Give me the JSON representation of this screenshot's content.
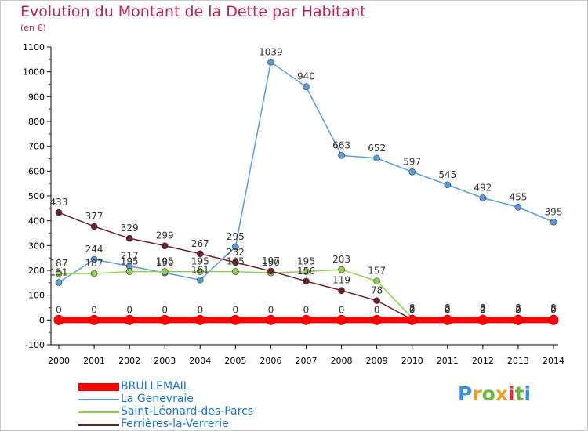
{
  "title": "Evolution du Montant de la Dette par Habitant",
  "subtitle": "(en €)",
  "logo_text": "Proxiti",
  "chart_data": {
    "type": "line",
    "x": [
      "2000",
      "2001",
      "2002",
      "2003",
      "2004",
      "2005",
      "2006",
      "2007",
      "2008",
      "2009",
      "2010",
      "2011",
      "2012",
      "2013",
      "2014"
    ],
    "ylim": [
      -100,
      1100
    ],
    "yticks": [
      "-100",
      "0",
      "100",
      "200",
      "300",
      "400",
      "500",
      "600",
      "700",
      "800",
      "900",
      "1000",
      "1100"
    ],
    "grid": false,
    "legend_position": "bottom",
    "series": [
      {
        "name": "BRULLEMAIL",
        "color": "#ff0000",
        "values": [
          0,
          0,
          0,
          0,
          0,
          0,
          0,
          0,
          0,
          0,
          0,
          0,
          0,
          0,
          0
        ],
        "labels": [
          "0",
          "0",
          "0",
          "0",
          "0",
          "0",
          "0",
          "0",
          "0",
          "0",
          "0",
          "0",
          "0",
          "0",
          "0"
        ]
      },
      {
        "name": "La Genevraie",
        "color": "#5b9bd5",
        "values": [
          151,
          244,
          217,
          190,
          161,
          295,
          1039,
          940,
          663,
          652,
          597,
          545,
          492,
          455,
          395
        ],
        "labels": [
          "151",
          "244",
          "217",
          "190",
          "161",
          "295",
          "1039",
          "940",
          "663",
          "652",
          "597",
          "545",
          "492",
          "455",
          "395"
        ]
      },
      {
        "name": "Saint-Léonard-des-Parcs",
        "color": "#8fd14f",
        "values": [
          187,
          187,
          195,
          195,
          195,
          195,
          190,
          195,
          203,
          157,
          8,
          8,
          8,
          8,
          8
        ],
        "labels": [
          "187",
          "187",
          "195",
          "195",
          "195",
          "195",
          "190",
          "195",
          "203",
          "157",
          "8",
          "8",
          "8",
          "8",
          "8"
        ]
      },
      {
        "name": "Ferrières-la-Verrerie",
        "color": "#6b1f2a",
        "values": [
          433,
          377,
          329,
          299,
          267,
          232,
          197,
          156,
          119,
          78,
          2,
          2,
          2,
          2,
          2
        ],
        "labels": [
          "433",
          "377",
          "329",
          "299",
          "267",
          "232",
          "197",
          "156",
          "119",
          "78",
          "2",
          "2",
          "2",
          "2",
          "2"
        ]
      }
    ]
  }
}
